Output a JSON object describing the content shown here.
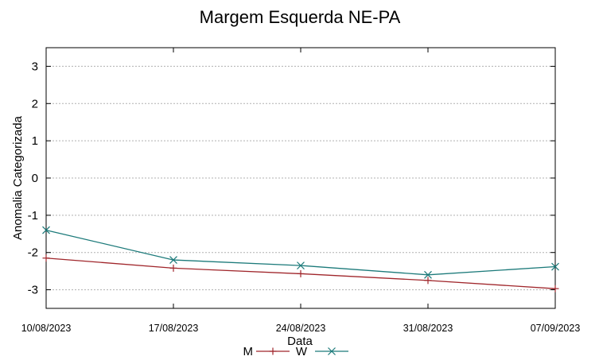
{
  "chart_data": {
    "type": "line",
    "title": "Margem Esquerda NE-PA",
    "xlabel": "Data",
    "ylabel": "Anomalia Categorizada",
    "categories": [
      "10/08/2023",
      "17/08/2023",
      "24/08/2023",
      "31/08/2023",
      "07/09/2023"
    ],
    "ylim": [
      -3.5,
      3.5
    ],
    "yticks": [
      -3,
      -2,
      -1,
      0,
      1,
      2,
      3
    ],
    "grid": true,
    "legend_position": "bottom-center",
    "series": [
      {
        "name": "M",
        "color": "#a0262b",
        "marker": "plus",
        "values": [
          -2.15,
          -2.42,
          -2.57,
          -2.75,
          -2.97
        ]
      },
      {
        "name": "W",
        "color": "#1c7a7a",
        "marker": "cross",
        "values": [
          -1.4,
          -2.2,
          -2.35,
          -2.6,
          -2.38
        ]
      }
    ]
  }
}
